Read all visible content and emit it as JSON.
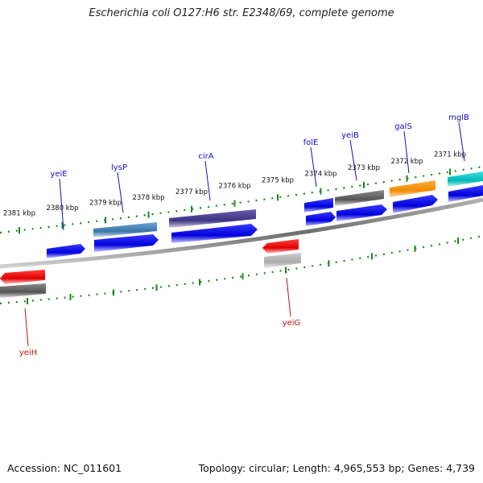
{
  "title": "Escherichia coli O127:H6 str. E2348/69, complete genome",
  "accession": "Accession: NC_011601",
  "summary": "Topology: circular; Length: 4,965,553 bp; Genes: 4,739",
  "colors": {
    "backbone": "#808080",
    "ticks": "#1a8a1a",
    "forward_label": "#1010c0",
    "reverse_label": "#c01010",
    "cds": "#1010e0",
    "gene_blue": "#4682b4",
    "gene_purple": "#483d8b",
    "gene_gray": "#666666",
    "gene_orange": "#ff8c00",
    "gene_cyan": "#00c8c8",
    "gene_red": "#ee0000",
    "gene_lightgray": "#bbbbbb"
  },
  "kbp_ticks": [
    "2381 kbp",
    "2380 kbp",
    "2379 kbp",
    "2378 kbp",
    "2377 kbp",
    "2376 kbp",
    "2375 kbp",
    "2374 kbp",
    "2373 kbp",
    "2372 kbp",
    "2371 kbp"
  ],
  "genes": [
    {
      "name": "yeiE",
      "strand": "forward"
    },
    {
      "name": "lysP",
      "strand": "forward"
    },
    {
      "name": "cirA",
      "strand": "forward"
    },
    {
      "name": "folE",
      "strand": "forward"
    },
    {
      "name": "yeiB",
      "strand": "forward"
    },
    {
      "name": "galS",
      "strand": "forward"
    },
    {
      "name": "mglB",
      "strand": "forward"
    },
    {
      "name": "yeiG",
      "strand": "reverse"
    },
    {
      "name": "yeiH",
      "strand": "reverse"
    }
  ]
}
